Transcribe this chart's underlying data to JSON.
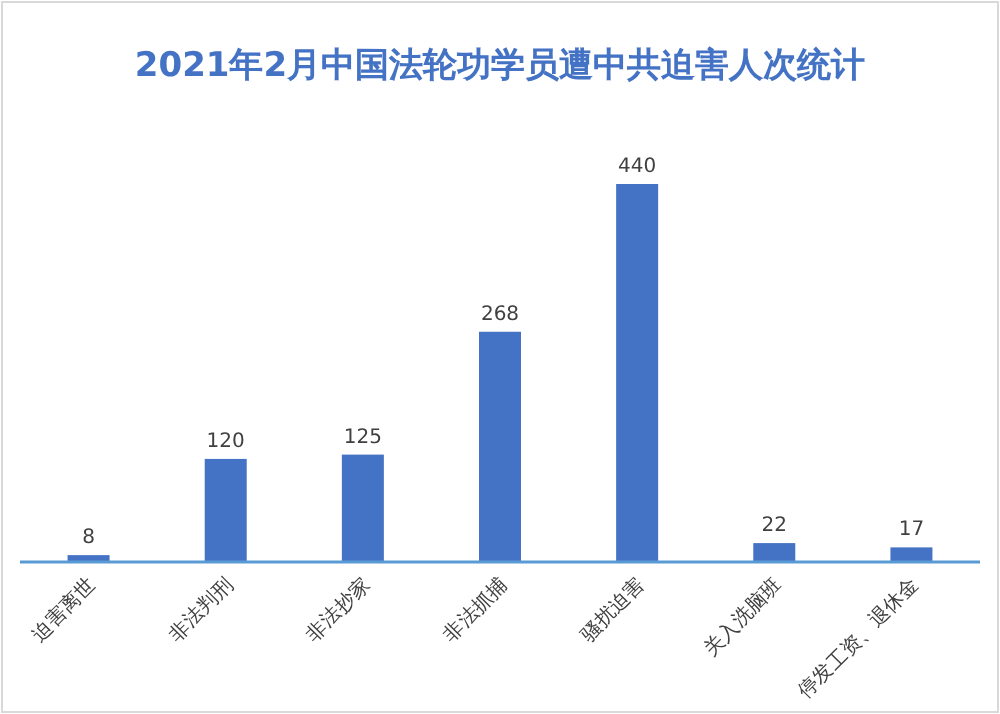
{
  "chart_data": {
    "type": "bar",
    "title": "2021年2月中国法轮功学员遭中共迫害人次统计",
    "categories": [
      "迫害离世",
      "非法判刑",
      "非法抄家",
      "非法抓捕",
      "骚扰迫害",
      "关入洗脑班",
      "停发工资、退休金"
    ],
    "values": [
      8,
      120,
      125,
      268,
      440,
      22,
      17
    ],
    "color": "#4472c4",
    "data_labels": true
  }
}
